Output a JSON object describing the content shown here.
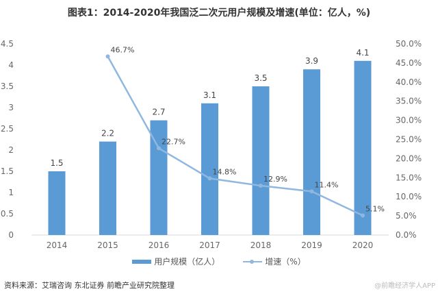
{
  "title": "图表1：2014-2020年我国泛二次元用户规模及增速(单位：亿人，%)",
  "source": "资料来源：艾瑞咨询 东北证券 前瞻产业研究院整理",
  "credit": "@前瞻经济学人APP",
  "chart_data": {
    "type": "bar+line",
    "categories": [
      "2014",
      "2015",
      "2016",
      "2017",
      "2018",
      "2019",
      "2020"
    ],
    "series": [
      {
        "name": "用户规模（亿人）",
        "type": "bar",
        "axis": "left",
        "values": [
          1.5,
          2.2,
          2.7,
          3.1,
          3.5,
          3.9,
          4.1
        ],
        "labels": [
          "1.5",
          "2.2",
          "2.7",
          "3.1",
          "3.5",
          "3.9",
          "4.1"
        ],
        "color": "#5b9bd5"
      },
      {
        "name": "增速（%）",
        "type": "line",
        "axis": "right",
        "values": [
          null,
          46.7,
          22.7,
          14.8,
          12.9,
          11.4,
          5.1
        ],
        "labels": [
          "",
          "46.7%",
          "22.7%",
          "14.8%",
          "12.9%",
          "11.4%",
          "5.1%"
        ],
        "color": "#8fb7e0"
      }
    ],
    "left_axis": {
      "ylim": [
        0,
        4.5
      ],
      "ticks": [
        "0",
        "0.5",
        "1",
        "1.5",
        "2",
        "2.5",
        "3",
        "3.5",
        "4",
        "4.5"
      ]
    },
    "right_axis": {
      "ylim": [
        0,
        50
      ],
      "ticks": [
        "0.0%",
        "5.0%",
        "10.0%",
        "15.0%",
        "20.0%",
        "25.0%",
        "30.0%",
        "35.0%",
        "40.0%",
        "45.0%",
        "50.0%"
      ]
    },
    "grid": false,
    "legend": "bottom"
  }
}
